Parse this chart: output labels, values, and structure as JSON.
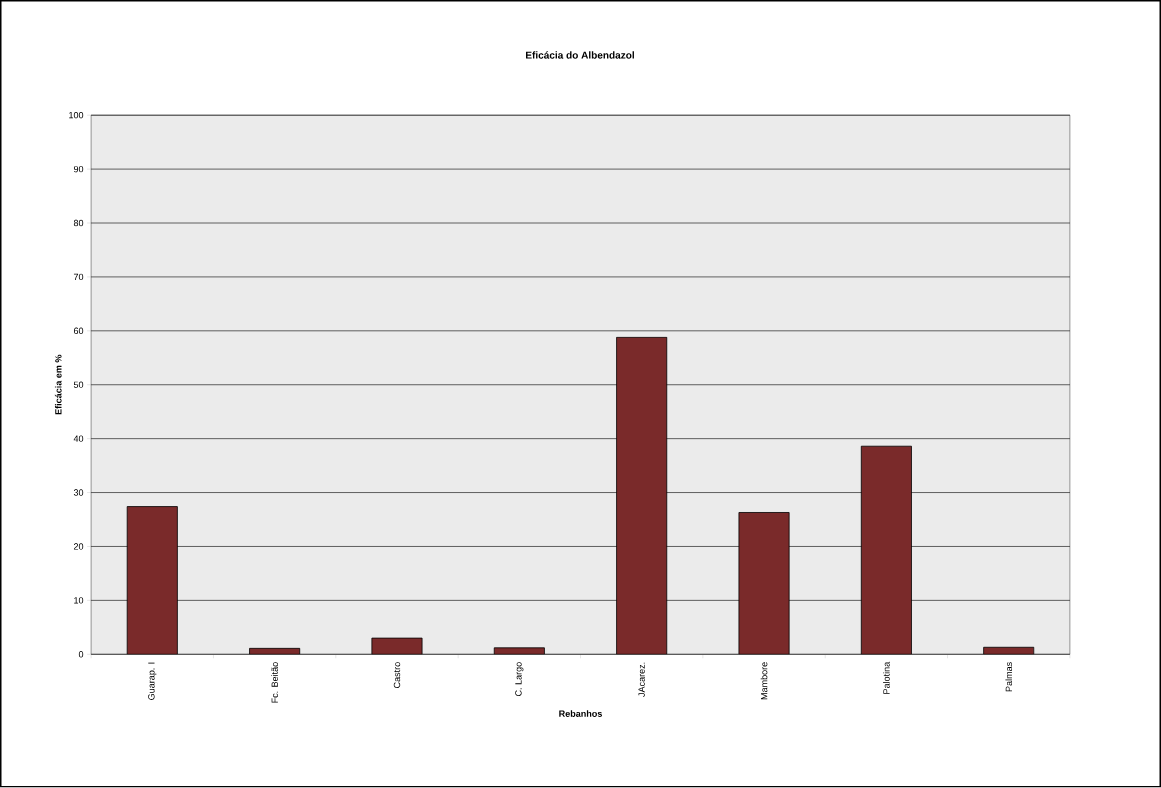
{
  "chart_data": {
    "type": "bar",
    "title": "Eficácia do Albendazol",
    "xlabel": "Rebanhos",
    "ylabel": "Eficácia em %",
    "categories": [
      "Guarap. I",
      "Fc. Beitão",
      "Castro",
      "C. Largo",
      "JAcarez.",
      "Mambore",
      "Palotina",
      "Palmas"
    ],
    "values": [
      27.4,
      1.1,
      3.0,
      1.2,
      58.8,
      26.3,
      38.6,
      1.3
    ],
    "color": "#7a2a2a",
    "ylim": [
      0,
      100
    ],
    "yticks": [
      0,
      10,
      20,
      30,
      40,
      50,
      60,
      70,
      80,
      90,
      100
    ],
    "grid": "y"
  }
}
